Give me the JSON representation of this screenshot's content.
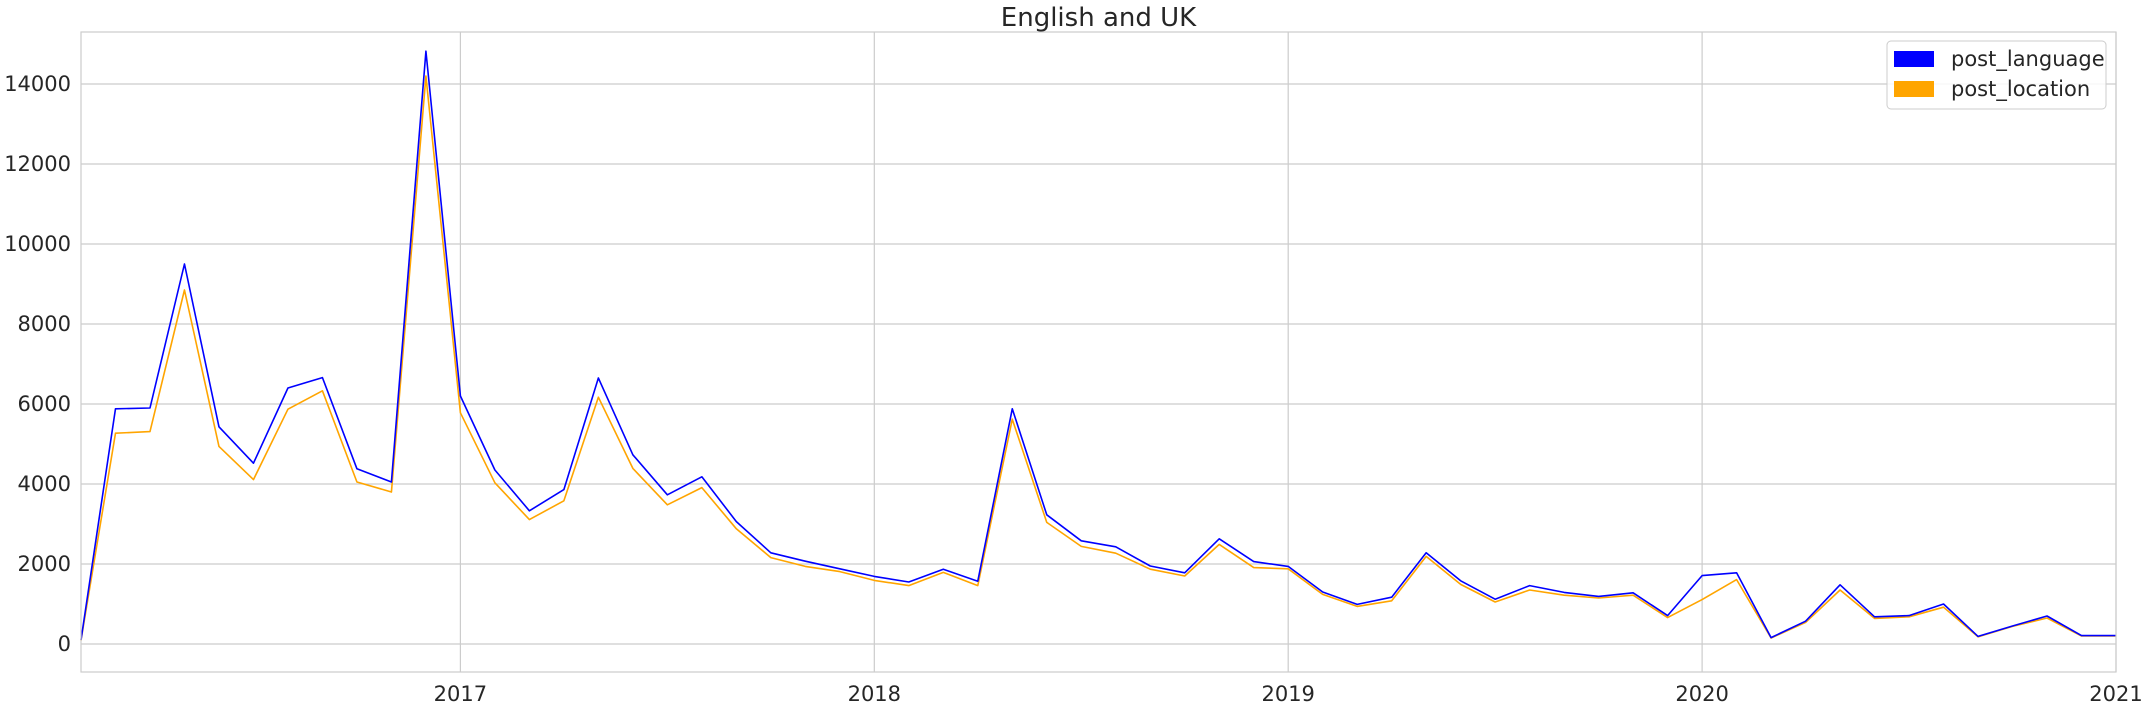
{
  "chart_data": {
    "type": "line",
    "title": "English and UK",
    "xlabel": "",
    "ylabel": "",
    "x_ticks": [
      {
        "label": "2017",
        "value": "2017-01"
      },
      {
        "label": "2018",
        "value": "2018-01"
      },
      {
        "label": "2019",
        "value": "2019-01"
      },
      {
        "label": "2020",
        "value": "2020-01"
      },
      {
        "label": "2021",
        "value": "2021-01"
      }
    ],
    "y_ticks": [
      0,
      2000,
      4000,
      6000,
      8000,
      10000,
      12000,
      14000
    ],
    "xlim": [
      "2016-02",
      "2021-01"
    ],
    "ylim": [
      -700,
      15300
    ],
    "grid": true,
    "legend_position": "top-right",
    "x": [
      "2016-02",
      "2016-03",
      "2016-04",
      "2016-05",
      "2016-06",
      "2016-07",
      "2016-08",
      "2016-09",
      "2016-10",
      "2016-11",
      "2016-12",
      "2017-01",
      "2017-02",
      "2017-03",
      "2017-04",
      "2017-05",
      "2017-06",
      "2017-07",
      "2017-08",
      "2017-09",
      "2017-10",
      "2017-11",
      "2017-12",
      "2018-01",
      "2018-02",
      "2018-03",
      "2018-04",
      "2018-05",
      "2018-06",
      "2018-07",
      "2018-08",
      "2018-09",
      "2018-10",
      "2018-11",
      "2018-12",
      "2019-01",
      "2019-02",
      "2019-03",
      "2019-04",
      "2019-05",
      "2019-06",
      "2019-07",
      "2019-08",
      "2019-09",
      "2019-10",
      "2019-11",
      "2019-12",
      "2020-01",
      "2020-02",
      "2020-03",
      "2020-04",
      "2020-05",
      "2020-06",
      "2020-07",
      "2020-08",
      "2020-09",
      "2020-10",
      "2020-11",
      "2020-12",
      "2021-01"
    ],
    "series": [
      {
        "name": "post_language",
        "color": "#0000ff",
        "values": [
          100,
          5880,
          5900,
          9500,
          5430,
          4520,
          6400,
          6660,
          4380,
          4050,
          14820,
          6200,
          4350,
          3330,
          3860,
          6650,
          4730,
          3730,
          4180,
          3060,
          2280,
          2070,
          1880,
          1690,
          1550,
          1870,
          1570,
          5880,
          3230,
          2580,
          2430,
          1950,
          1780,
          2630,
          2060,
          1940,
          1300,
          990,
          1170,
          2280,
          1580,
          1120,
          1460,
          1290,
          1190,
          1280,
          710,
          1710,
          1780,
          160,
          570,
          1480,
          680,
          710,
          1000,
          190,
          450,
          700,
          210,
          210
        ]
      },
      {
        "name": "post_location",
        "color": "#ffa500",
        "values": [
          90,
          5270,
          5310,
          8850,
          4940,
          4110,
          5870,
          6330,
          4050,
          3800,
          14200,
          5780,
          4030,
          3110,
          3580,
          6170,
          4390,
          3480,
          3910,
          2880,
          2160,
          1940,
          1810,
          1590,
          1460,
          1790,
          1460,
          5620,
          3040,
          2440,
          2270,
          1870,
          1700,
          2490,
          1910,
          1880,
          1240,
          940,
          1080,
          2190,
          1490,
          1050,
          1350,
          1220,
          1150,
          1220,
          660,
          1110,
          1610,
          150,
          540,
          1350,
          640,
          680,
          920,
          180,
          440,
          650,
          200,
          200
        ]
      }
    ]
  }
}
